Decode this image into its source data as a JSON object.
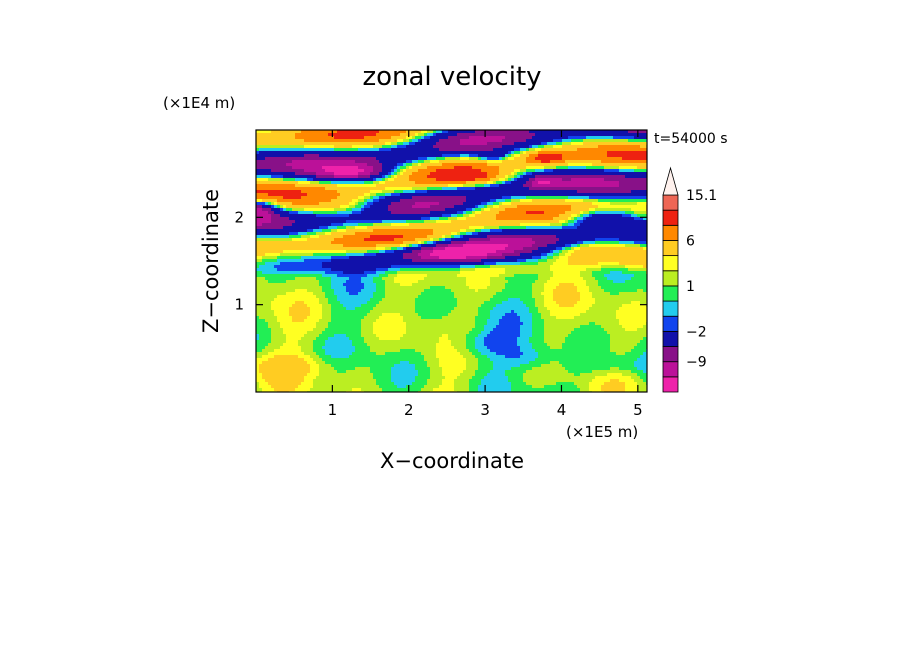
{
  "chart_data": {
    "type": "heatmap",
    "title": "zonal velocity",
    "xlabel": "X−coordinate",
    "ylabel": "Z−coordinate",
    "x_unit_label": "(×1E5 m)",
    "y_unit_label": "(×1E4 m)",
    "annotation": "t=54000 s",
    "xlim": [
      0,
      5.12
    ],
    "ylim": [
      0,
      3.0
    ],
    "x_ticks": [
      1,
      2,
      3,
      4,
      5
    ],
    "y_ticks": [
      1,
      2
    ],
    "grid": false,
    "colorbar": {
      "placement": "right",
      "extend_top": true,
      "levels": [
        -15,
        -12,
        -9,
        -6,
        -2,
        -1,
        0,
        1,
        2,
        3,
        6,
        9,
        12,
        15.1
      ],
      "colors": [
        "#ee22aa",
        "#bb1199",
        "#881188",
        "#1111aa",
        "#1144ee",
        "#22ccee",
        "#22ee55",
        "#bbee22",
        "#ffff22",
        "#ffcc22",
        "#ff8800",
        "#ee2211",
        "#ee6655",
        "#ffbbbb",
        "#fff2ee"
      ],
      "tick_labels": [
        "15.1",
        "6",
        "1",
        "−2",
        "−9"
      ],
      "tick_values": [
        15.1,
        6,
        1,
        -2,
        -9
      ]
    }
  }
}
